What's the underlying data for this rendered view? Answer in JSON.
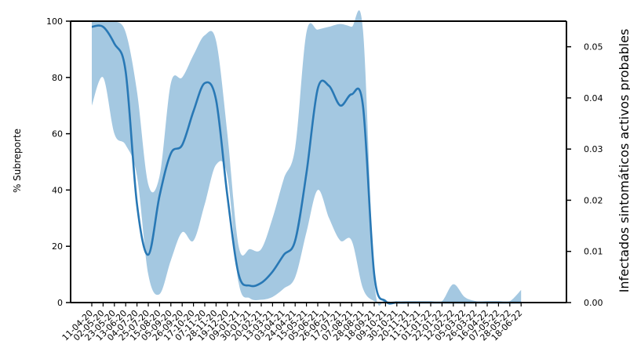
{
  "chart_data": {
    "type": "line",
    "ylabel": "% Subreporte",
    "y2label": "Infectados sintomáticos activos probables",
    "ylim": [
      0,
      100
    ],
    "y2lim": [
      0,
      0.055
    ],
    "yticks": [
      0,
      20,
      40,
      60,
      80,
      100
    ],
    "y2ticks": [
      "0.00",
      "0.01",
      "0.02",
      "0.03",
      "0.04",
      "0.05"
    ],
    "grid": false,
    "series_color": "#2878b5",
    "band_color": "#a4c8e1",
    "categories": [
      "11-04-20",
      "02-05-20",
      "23-05-20",
      "13-06-20",
      "04-07-20",
      "25-07-20",
      "15-08-20",
      "05-09-20",
      "26-09-20",
      "17-10-20",
      "07-11-20",
      "28-11-20",
      "19-12-20",
      "09-01-21",
      "30-01-21",
      "20-02-21",
      "13-03-21",
      "03-04-21",
      "24-04-21",
      "15-05-21",
      "05-06-21",
      "26-06-21",
      "17-07-21",
      "07-08-21",
      "28-08-21",
      "18-09-21",
      "09-10-21",
      "30-10-21",
      "20-11-21",
      "11-12-21",
      "01-01-22",
      "22-01-22",
      "12-02-22",
      "05-03-22",
      "26-03-22",
      "16-04-22",
      "07-05-22",
      "28-05-22",
      "18-06-22"
    ],
    "series": [
      {
        "values": [
          98,
          98,
          92,
          82,
          35,
          17,
          38,
          53,
          56,
          68,
          78,
          72,
          38,
          10,
          6,
          7,
          11,
          17,
          22,
          46,
          76,
          77,
          70,
          74,
          70,
          10,
          0.5,
          0,
          0,
          0,
          0,
          0,
          0,
          0,
          0,
          0,
          0,
          0,
          0
        ],
        "lower": [
          70,
          80,
          60,
          56,
          45,
          10,
          3,
          15,
          25,
          22,
          35,
          49,
          45,
          7,
          1.5,
          1,
          2,
          5,
          9,
          25,
          40,
          30,
          22,
          22,
          5,
          0.5,
          0,
          0,
          0,
          0,
          0,
          0,
          0,
          0,
          0,
          0,
          0,
          0,
          0
        ],
        "upper": [
          100,
          100,
          100,
          96,
          75,
          42,
          45,
          78,
          80,
          88,
          95,
          93,
          60,
          20,
          19,
          19,
          30,
          44,
          55,
          96,
          97,
          98,
          99,
          98,
          97,
          8,
          1,
          0.5,
          0.5,
          0.5,
          0.5,
          0.5,
          6.5,
          2,
          0.5,
          0.5,
          0.5,
          0.5,
          4.5
        ]
      }
    ]
  }
}
